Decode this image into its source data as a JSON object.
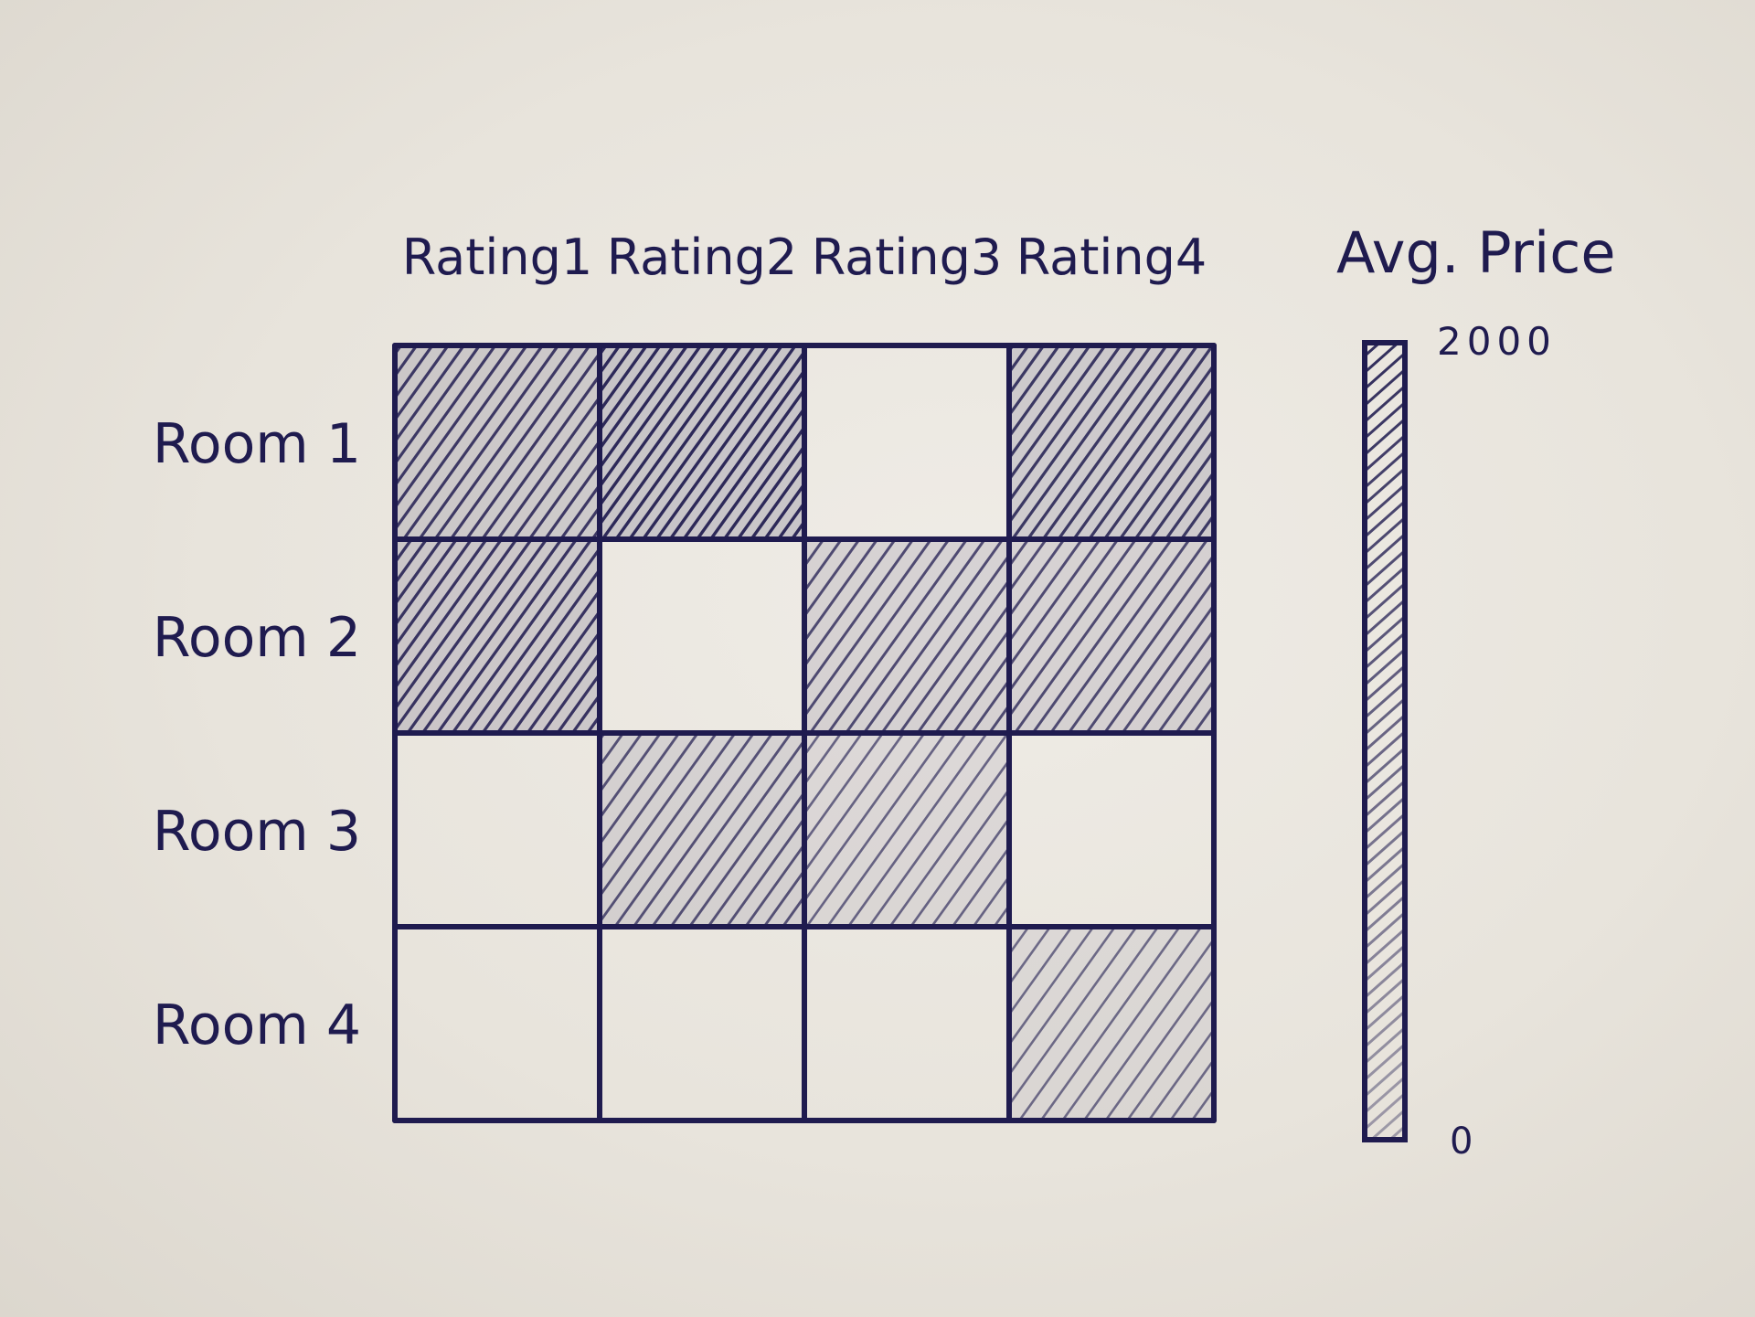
{
  "chart_data": {
    "type": "heatmap",
    "x_categories": [
      "Rating1",
      "Rating2",
      "Rating3",
      "Rating4"
    ],
    "y_categories": [
      "Room 1",
      "Room 2",
      "Room 3",
      "Room 4"
    ],
    "values": [
      [
        1600,
        1900,
        0,
        1650
      ],
      [
        1700,
        0,
        1300,
        1300
      ],
      [
        0,
        1200,
        900,
        0
      ],
      [
        0,
        0,
        0,
        800
      ]
    ],
    "colorbar": {
      "label": "Avg. Price",
      "min": 0,
      "max": 2000,
      "min_label": "0",
      "max_label": "2000"
    },
    "grid": true,
    "ink_color": "#1f1b4f",
    "paper_color": "#ebe7df"
  }
}
